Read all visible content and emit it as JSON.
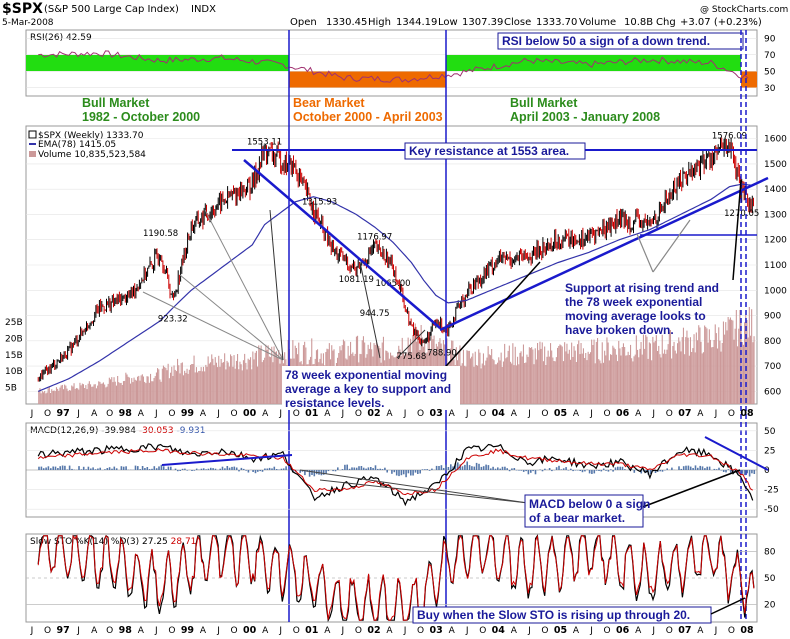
{
  "header": {
    "symbol": "$SPX",
    "name": "(S&P 500 Large Cap Index)",
    "exchange": "INDX",
    "date": "5-Mar-2008",
    "copyright": "@ StockCharts.com",
    "open_label": "Open",
    "open": "1330.45",
    "high_label": "High",
    "high": "1344.19",
    "low_label": "Low",
    "low": "1307.39",
    "close_label": "Close",
    "close": "1333.70",
    "volume_label": "Volume",
    "volume": "10.8B",
    "chg_label": "Chg",
    "chg": "+3.07 (+0.23%)"
  },
  "colors": {
    "annotation_blue": "#1a1a9a",
    "bull_green": "#2c8c1c",
    "bear_orange": "#ee6a00",
    "rsi_green_band": "#22dd11",
    "rsi_orange_band": "#ee6a00",
    "price_up": "#000000",
    "price_down": "#cc0000",
    "ema_line": "#3333aa",
    "volume_bar": "#cc9999",
    "macd_hist": "#5577aa"
  },
  "chart_data": [
    {
      "type": "line",
      "panel": "rsi",
      "legend": "RSI(26) 42.59",
      "ylim": [
        20,
        100
      ],
      "y_ticks": [
        "90",
        "70",
        "50",
        "30"
      ],
      "y_tick_values": [
        90,
        70,
        50,
        30
      ],
      "bands": [
        {
          "from": 50,
          "to": 70,
          "period": "1982 - October 2000",
          "color": "green"
        },
        {
          "from": 30,
          "to": 50,
          "period": "October 2000 - April 2003",
          "color": "orange"
        },
        {
          "from": 50,
          "to": 70,
          "period": "April 2003 - January 2008",
          "color": "green"
        }
      ],
      "x": [
        1996.5,
        1997.5,
        1998.5,
        1999.5,
        2000.5,
        2001.5,
        2002.5,
        2003.3,
        2004.5,
        2005.5,
        2006.5,
        2007.5,
        2008.1
      ],
      "values": [
        70,
        72,
        63,
        66,
        58,
        42,
        40,
        47,
        63,
        58,
        64,
        60,
        42
      ]
    },
    {
      "type": "candlestick",
      "panel": "price",
      "legend": [
        "$SPX (Weekly) 1333.70",
        "EMA(78) 1415.05",
        "Volume 10,835,523,584"
      ],
      "ylim": [
        550,
        1650
      ],
      "y_ticks": [
        "1600",
        "1500",
        "1400",
        "1300",
        "1200",
        "1100",
        "1000",
        "900",
        "800",
        "700",
        "600"
      ],
      "y_tick_values": [
        1600,
        1500,
        1400,
        1300,
        1200,
        1100,
        1000,
        900,
        800,
        700,
        600
      ],
      "volume_ticks": [
        "25B",
        "20B",
        "15B",
        "10B",
        "5B"
      ],
      "volume_tick_values": [
        25,
        20,
        15,
        10,
        5
      ],
      "x": [
        1996.5,
        1997.0,
        1997.5,
        1998.0,
        1998.5,
        1998.7,
        1999.0,
        1999.5,
        2000.0,
        2000.2,
        2000.7,
        2001.0,
        2001.3,
        2001.7,
        2002.0,
        2002.3,
        2002.6,
        2002.8,
        2003.0,
        2003.2,
        2003.5,
        2004.0,
        2004.5,
        2005.0,
        2005.5,
        2006.0,
        2006.5,
        2007.0,
        2007.5,
        2007.8,
        2008.0,
        2008.2
      ],
      "values": [
        650,
        760,
        930,
        980,
        1150,
        960,
        1250,
        1350,
        1420,
        1553,
        1480,
        1320,
        1160,
        1080,
        1170,
        1100,
        850,
        790,
        870,
        850,
        990,
        1120,
        1130,
        1200,
        1210,
        1280,
        1260,
        1440,
        1530,
        1576,
        1380,
        1333
      ],
      "ema": [
        600,
        650,
        720,
        800,
        880,
        930,
        1000,
        1090,
        1180,
        1260,
        1350,
        1370,
        1350,
        1300,
        1250,
        1190,
        1110,
        1040,
        980,
        950,
        960,
        1010,
        1060,
        1110,
        1150,
        1200,
        1240,
        1300,
        1360,
        1410,
        1420,
        1415
      ],
      "volume": [
        4,
        5,
        6,
        8,
        9,
        11,
        12,
        13,
        14,
        15,
        16,
        16,
        15,
        17,
        16,
        17,
        20,
        20,
        17,
        16,
        14,
        15,
        15,
        16,
        16,
        17,
        17,
        19,
        20,
        22,
        24,
        24
      ],
      "price_labels": [
        {
          "text": "1553.11",
          "x": 2000.2,
          "y": 1553
        },
        {
          "text": "1315.93",
          "x": 2001.1,
          "y": 1316
        },
        {
          "text": "1190.58",
          "x": 1998.5,
          "y": 1191
        },
        {
          "text": "1176.97",
          "x": 2002.0,
          "y": 1177
        },
        {
          "text": "1081.19",
          "x": 2001.7,
          "y": 1081
        },
        {
          "text": "1065.00",
          "x": 2002.3,
          "y": 1065
        },
        {
          "text": "944.75",
          "x": 2002.0,
          "y": 945
        },
        {
          "text": "923.32",
          "x": 1998.7,
          "y": 923
        },
        {
          "text": "775.68",
          "x": 2002.6,
          "y": 776
        },
        {
          "text": "788.90",
          "x": 2003.1,
          "y": 789
        },
        {
          "text": "1576.09",
          "x": 2007.8,
          "y": 1576
        },
        {
          "text": "1270.05",
          "x": 2008.0,
          "y": 1270
        }
      ]
    },
    {
      "type": "line",
      "panel": "macd",
      "legend": [
        "MACD(12,26,9)",
        "-39.984",
        "-30.053",
        "-9.931"
      ],
      "ylim": [
        -60,
        60
      ],
      "y_ticks": [
        "50",
        "25",
        "0",
        "-25",
        "-50"
      ],
      "y_tick_values": [
        50,
        25,
        0,
        -25,
        -50
      ],
      "x": [
        1996.5,
        1997.5,
        1998.5,
        1999.0,
        1999.5,
        2000.0,
        2000.5,
        2001.0,
        2001.5,
        2002.0,
        2002.5,
        2003.0,
        2003.5,
        2004.0,
        2004.5,
        2005.0,
        2005.5,
        2006.0,
        2006.5,
        2007.0,
        2007.5,
        2008.0,
        2008.2
      ],
      "series": [
        {
          "name": "MACD",
          "values": [
            20,
            25,
            30,
            20,
            25,
            15,
            20,
            -35,
            -20,
            -10,
            -40,
            -20,
            25,
            30,
            10,
            15,
            5,
            10,
            -5,
            25,
            20,
            -10,
            -40
          ]
        },
        {
          "name": "Signal",
          "values": [
            15,
            22,
            25,
            22,
            20,
            18,
            15,
            -25,
            -25,
            -15,
            -30,
            -25,
            15,
            25,
            15,
            12,
            8,
            8,
            0,
            20,
            18,
            -5,
            -30
          ]
        }
      ]
    },
    {
      "type": "line",
      "panel": "stochastic",
      "legend": [
        "Slow STO %K(14) %D(3)",
        "27.25",
        "28.71"
      ],
      "ylim": [
        0,
        100
      ],
      "y_ticks": [
        "80",
        "50",
        "20"
      ],
      "y_tick_values": [
        80,
        50,
        20
      ],
      "x": [
        1996.5,
        1997.5,
        1998.5,
        1999.5,
        2000.5,
        2001.5,
        2002.5,
        2003.5,
        2004.5,
        2005.5,
        2006.5,
        2007.5,
        2008.2
      ],
      "series": [
        {
          "name": "%K",
          "values": [
            90,
            70,
            40,
            85,
            60,
            20,
            10,
            90,
            60,
            85,
            50,
            80,
            27
          ]
        },
        {
          "name": "%D",
          "values": [
            85,
            72,
            45,
            80,
            62,
            25,
            15,
            85,
            62,
            80,
            55,
            78,
            29
          ]
        }
      ]
    }
  ],
  "x_axis": {
    "labels": [
      "J",
      "O",
      "97",
      "J",
      "A",
      "O",
      "98",
      "A",
      "J",
      "O",
      "99",
      "A",
      "J",
      "O",
      "00",
      "A",
      "J",
      "O",
      "01",
      "A",
      "J",
      "O",
      "02",
      "A",
      "J",
      "O",
      "03",
      "A",
      "J",
      "O",
      "04",
      "A",
      "J",
      "O",
      "05",
      "A",
      "J",
      "O",
      "06",
      "A",
      "J",
      "O",
      "07",
      "A",
      "J",
      "O",
      "08"
    ],
    "bold": [
      "97",
      "98",
      "99",
      "00",
      "01",
      "02",
      "03",
      "04",
      "05",
      "06",
      "07",
      "08"
    ]
  },
  "annotations": {
    "rsi_note": "RSI below 50 a sign of a down trend.",
    "bull1_title": "Bull Market",
    "bull1_period": "1982 - October 2000",
    "bear_title": "Bear Market",
    "bear_period": "October 2000 - April 2003",
    "bull2_title": "Bull Market",
    "bull2_period": "April 2003 - January 2008",
    "key_resistance": "Key resistance at 1553 area.",
    "support_line1": "Support at rising trend and",
    "support_line2": "the 78 week exponential",
    "support_line3": "moving average looks to",
    "support_line4": "have broken down.",
    "ema_line1": "78 week exponential moving",
    "ema_line2": "average a key to support and",
    "ema_line3": "resistance levels.",
    "macd_line1": "MACD below 0 a sign",
    "macd_line2": "of a bear market.",
    "sto_note": "Buy when the Slow STO is rising up through 20."
  }
}
